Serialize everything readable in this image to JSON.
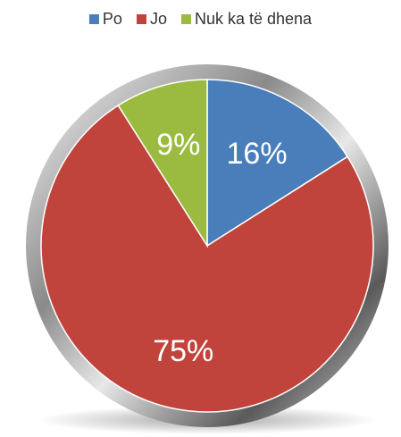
{
  "chart_data": {
    "type": "pie",
    "categories": [
      "Po",
      "Jo",
      "Nuk ka të dhena"
    ],
    "values": [
      16,
      75,
      9
    ],
    "value_labels": [
      "16%",
      "75%",
      "9%"
    ],
    "colors": [
      "#4a7ebb",
      "#c0443b",
      "#9bbb40"
    ],
    "legend": "top"
  }
}
